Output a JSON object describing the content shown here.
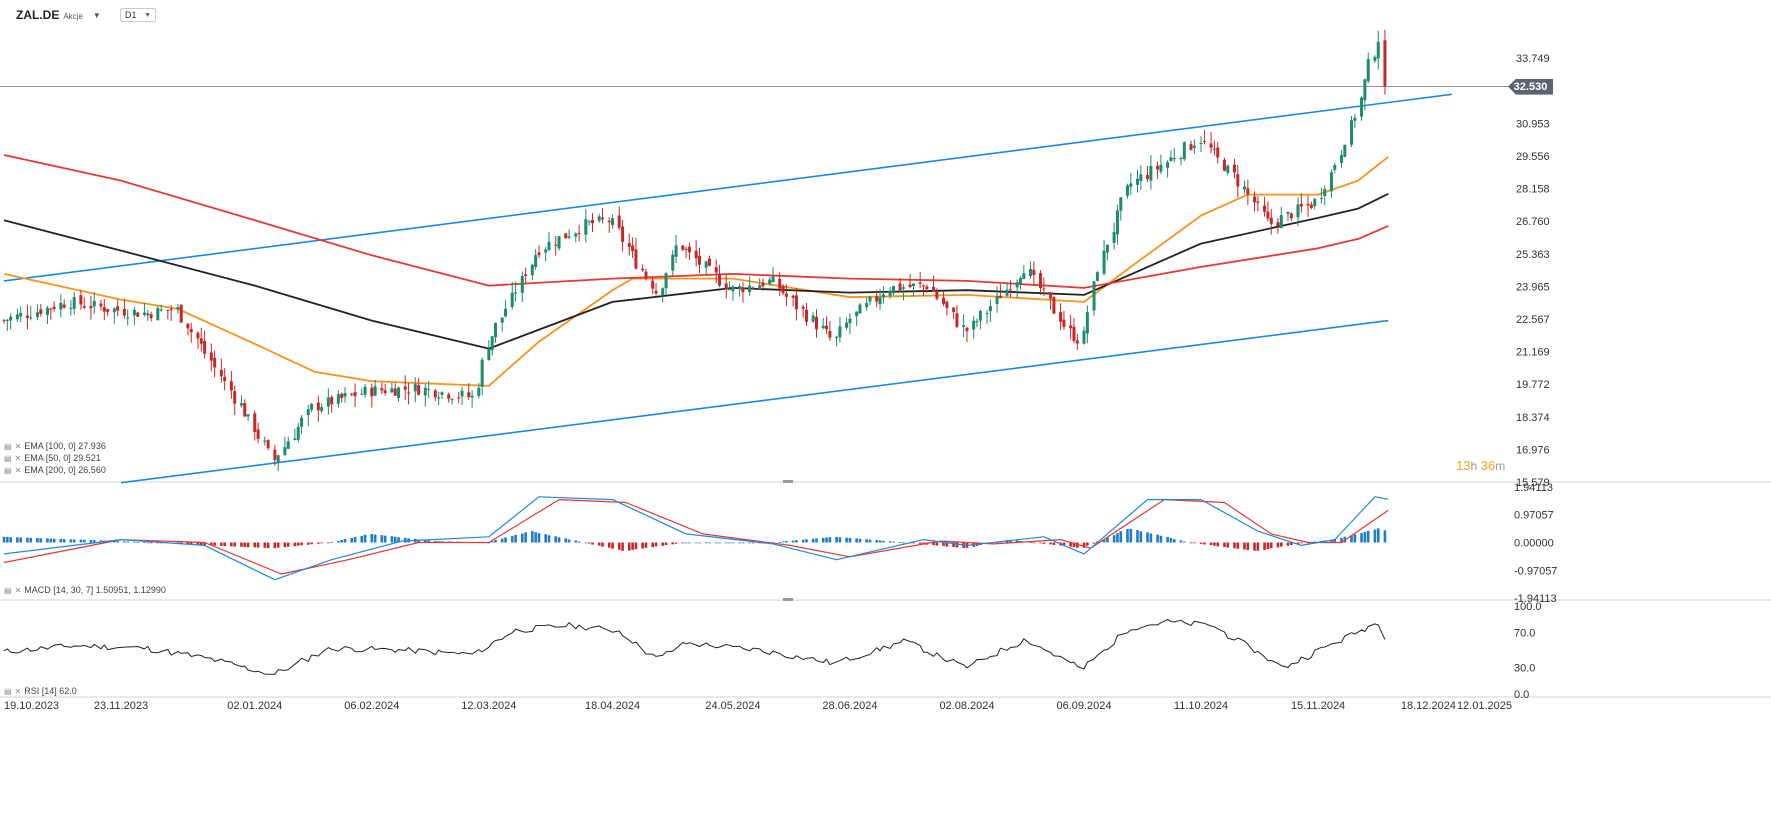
{
  "header": {
    "symbol": "ZAL.DE",
    "asset_type": "Akcje",
    "timeframe": "D1"
  },
  "countdown": {
    "hours": "13",
    "h_unit": "h",
    "minutes": "36",
    "m_unit": "m"
  },
  "colors": {
    "up": "#1e8a6e",
    "down": "#c62828",
    "channel": "#1e88e5",
    "ema50": "#f7941d",
    "ema100": "#222222",
    "ema200": "#e53935",
    "macd_line": "#1e88e5",
    "signal_line": "#e53935",
    "hist_pos": "#1e7cc8",
    "hist_neg": "#c62828",
    "rsi_line": "#222222",
    "badge": "#5a6470"
  },
  "legends": {
    "ema100": "EMA [100,  0] 27.936",
    "ema50": "EMA [50,  0] 29.521",
    "ema200": "EMA [200,  0] 26.560",
    "macd": "MACD [14, 30, 7] 1.50951,  1.12990",
    "rsi": "RSI [14] 62.0"
  },
  "chart_data": {
    "type": "candlestick",
    "symbol": "ZAL.DE",
    "timeframe": "D1",
    "last_price": "32.530",
    "last_price_value": 32.53,
    "price_axis_labels": [
      "33.749",
      "32.530",
      "30.953",
      "29.556",
      "28.158",
      "26.760",
      "25.363",
      "23.965",
      "22.567",
      "21.169",
      "19.772",
      "18.374",
      "16.976",
      "15.579"
    ],
    "price_ylim": [
      15.579,
      35.3
    ],
    "date_labels": [
      "19.10.2023",
      "23.11.2023",
      "02.01.2024",
      "06.02.2024",
      "12.03.2024",
      "18.04.2024",
      "24.05.2024",
      "28.06.2024",
      "02.08.2024",
      "06.09.2024",
      "11.10.2024",
      "15.11.2024",
      "18.12.2024",
      "12.01.2025"
    ],
    "price_path": [
      {
        "date": "2023-10-19",
        "close": 22.5
      },
      {
        "date": "2023-11-08",
        "close": 23.3
      },
      {
        "date": "2023-11-20",
        "close": 23.0
      },
      {
        "date": "2023-12-01",
        "close": 22.8
      },
      {
        "date": "2023-12-10",
        "close": 23.0
      },
      {
        "date": "2023-12-18",
        "close": 21.3
      },
      {
        "date": "2024-01-02",
        "close": 18.0
      },
      {
        "date": "2024-01-08",
        "close": 16.5
      },
      {
        "date": "2024-01-20",
        "close": 18.8
      },
      {
        "date": "2024-02-06",
        "close": 19.5
      },
      {
        "date": "2024-02-20",
        "close": 19.6
      },
      {
        "date": "2024-03-08",
        "close": 19.2
      },
      {
        "date": "2024-03-12",
        "close": 21.5
      },
      {
        "date": "2024-03-27",
        "close": 25.5
      },
      {
        "date": "2024-04-10",
        "close": 26.6
      },
      {
        "date": "2024-04-18",
        "close": 26.8
      },
      {
        "date": "2024-04-24",
        "close": 25.4
      },
      {
        "date": "2024-05-02",
        "close": 23.7
      },
      {
        "date": "2024-05-08",
        "close": 25.8
      },
      {
        "date": "2024-05-24",
        "close": 23.8
      },
      {
        "date": "2024-06-05",
        "close": 24.2
      },
      {
        "date": "2024-06-15",
        "close": 22.8
      },
      {
        "date": "2024-06-24",
        "close": 21.6
      },
      {
        "date": "2024-06-28",
        "close": 22.5
      },
      {
        "date": "2024-07-10",
        "close": 23.9
      },
      {
        "date": "2024-07-22",
        "close": 24.0
      },
      {
        "date": "2024-08-02",
        "close": 22.0
      },
      {
        "date": "2024-08-09",
        "close": 23.0
      },
      {
        "date": "2024-08-20",
        "close": 24.8
      },
      {
        "date": "2024-09-02",
        "close": 22.0
      },
      {
        "date": "2024-09-06",
        "close": 21.6
      },
      {
        "date": "2024-09-10",
        "close": 24.5
      },
      {
        "date": "2024-09-20",
        "close": 28.3
      },
      {
        "date": "2024-10-01",
        "close": 29.3
      },
      {
        "date": "2024-10-11",
        "close": 30.3
      },
      {
        "date": "2024-10-22",
        "close": 28.6
      },
      {
        "date": "2024-11-01",
        "close": 26.6
      },
      {
        "date": "2024-11-09",
        "close": 27.2
      },
      {
        "date": "2024-11-15",
        "close": 27.6
      },
      {
        "date": "2024-11-20",
        "close": 29.0
      },
      {
        "date": "2024-11-27",
        "close": 31.5
      },
      {
        "date": "2024-12-01",
        "close": 33.5
      },
      {
        "date": "2024-12-04",
        "close": 34.7
      },
      {
        "date": "2024-12-06",
        "close": 32.53
      }
    ],
    "ema_series": [
      {
        "name": "EMA 50",
        "last": 29.521,
        "points": [
          {
            "date": "2023-10-19",
            "value": 24.5
          },
          {
            "date": "2023-11-23",
            "value": 23.4
          },
          {
            "date": "2023-12-10",
            "value": 23.0
          },
          {
            "date": "2024-01-02",
            "value": 21.5
          },
          {
            "date": "2024-01-20",
            "value": 20.3
          },
          {
            "date": "2024-02-06",
            "value": 19.9
          },
          {
            "date": "2024-03-12",
            "value": 19.7
          },
          {
            "date": "2024-03-27",
            "value": 21.6
          },
          {
            "date": "2024-04-18",
            "value": 23.8
          },
          {
            "date": "2024-04-24",
            "value": 24.3
          },
          {
            "date": "2024-05-24",
            "value": 24.3
          },
          {
            "date": "2024-06-28",
            "value": 23.5
          },
          {
            "date": "2024-08-02",
            "value": 23.6
          },
          {
            "date": "2024-09-06",
            "value": 23.3
          },
          {
            "date": "2024-09-20",
            "value": 24.8
          },
          {
            "date": "2024-10-11",
            "value": 27.0
          },
          {
            "date": "2024-10-25",
            "value": 27.9
          },
          {
            "date": "2024-11-15",
            "value": 27.9
          },
          {
            "date": "2024-11-27",
            "value": 28.5
          },
          {
            "date": "2024-12-06",
            "value": 29.521
          }
        ]
      },
      {
        "name": "EMA 100",
        "last": 27.936,
        "points": [
          {
            "date": "2023-10-19",
            "value": 26.8
          },
          {
            "date": "2023-11-23",
            "value": 25.5
          },
          {
            "date": "2024-01-02",
            "value": 24.0
          },
          {
            "date": "2024-02-06",
            "value": 22.5
          },
          {
            "date": "2024-03-12",
            "value": 21.3
          },
          {
            "date": "2024-04-18",
            "value": 23.3
          },
          {
            "date": "2024-05-24",
            "value": 23.9
          },
          {
            "date": "2024-06-28",
            "value": 23.7
          },
          {
            "date": "2024-08-02",
            "value": 23.8
          },
          {
            "date": "2024-09-06",
            "value": 23.6
          },
          {
            "date": "2024-10-11",
            "value": 25.8
          },
          {
            "date": "2024-11-15",
            "value": 26.9
          },
          {
            "date": "2024-11-27",
            "value": 27.3
          },
          {
            "date": "2024-12-06",
            "value": 27.936
          }
        ]
      },
      {
        "name": "EMA 200",
        "last": 26.56,
        "points": [
          {
            "date": "2023-10-19",
            "value": 29.6
          },
          {
            "date": "2023-11-23",
            "value": 28.5
          },
          {
            "date": "2024-01-02",
            "value": 26.8
          },
          {
            "date": "2024-02-06",
            "value": 25.3
          },
          {
            "date": "2024-03-12",
            "value": 24.0
          },
          {
            "date": "2024-04-18",
            "value": 24.3
          },
          {
            "date": "2024-05-24",
            "value": 24.5
          },
          {
            "date": "2024-06-28",
            "value": 24.3
          },
          {
            "date": "2024-08-02",
            "value": 24.2
          },
          {
            "date": "2024-09-06",
            "value": 23.9
          },
          {
            "date": "2024-10-11",
            "value": 24.8
          },
          {
            "date": "2024-11-15",
            "value": 25.6
          },
          {
            "date": "2024-11-27",
            "value": 26.0
          },
          {
            "date": "2024-12-06",
            "value": 26.56
          }
        ]
      }
    ],
    "channel_lines": [
      {
        "name": "upper",
        "from": {
          "date": "2023-10-19",
          "value": 24.2
        },
        "to": {
          "date": "2024-12-25",
          "value": 32.2
        }
      },
      {
        "name": "lower",
        "from": {
          "date": "2023-11-23",
          "value": 15.55
        },
        "to": {
          "date": "2024-12-06",
          "value": 22.5
        }
      }
    ],
    "macd": {
      "params": "14, 30, 7",
      "macd_value": 1.50951,
      "signal_value": 1.1299,
      "axis_labels": [
        "1.94113",
        "0.97057",
        "0.00000",
        "-0.97057",
        "-1.94113"
      ],
      "ylim": [
        -1.94113,
        1.94113
      ],
      "macd_path": [
        {
          "date": "2023-10-19",
          "value": -0.4
        },
        {
          "date": "2023-11-23",
          "value": 0.1
        },
        {
          "date": "2023-12-18",
          "value": -0.1
        },
        {
          "date": "2024-01-08",
          "value": -1.3
        },
        {
          "date": "2024-01-25",
          "value": -0.6
        },
        {
          "date": "2024-02-15",
          "value": 0.05
        },
        {
          "date": "2024-03-12",
          "value": 0.2
        },
        {
          "date": "2024-03-27",
          "value": 1.6
        },
        {
          "date": "2024-04-18",
          "value": 1.5
        },
        {
          "date": "2024-05-10",
          "value": 0.3
        },
        {
          "date": "2024-06-05",
          "value": -0.05
        },
        {
          "date": "2024-06-24",
          "value": -0.6
        },
        {
          "date": "2024-07-20",
          "value": 0.1
        },
        {
          "date": "2024-08-02",
          "value": -0.1
        },
        {
          "date": "2024-08-25",
          "value": 0.2
        },
        {
          "date": "2024-09-06",
          "value": -0.4
        },
        {
          "date": "2024-09-25",
          "value": 1.5
        },
        {
          "date": "2024-10-11",
          "value": 1.5
        },
        {
          "date": "2024-10-28",
          "value": 0.4
        },
        {
          "date": "2024-11-10",
          "value": -0.1
        },
        {
          "date": "2024-11-20",
          "value": 0.1
        },
        {
          "date": "2024-12-02",
          "value": 1.6
        },
        {
          "date": "2024-12-06",
          "value": 1.50951
        }
      ],
      "signal_path": [
        {
          "date": "2023-10-19",
          "value": -0.7
        },
        {
          "date": "2023-11-23",
          "value": 0.1
        },
        {
          "date": "2023-12-18",
          "value": 0.0
        },
        {
          "date": "2024-01-10",
          "value": -1.1
        },
        {
          "date": "2024-01-30",
          "value": -0.6
        },
        {
          "date": "2024-02-20",
          "value": 0.0
        },
        {
          "date": "2024-03-12",
          "value": 0.0
        },
        {
          "date": "2024-04-02",
          "value": 1.5
        },
        {
          "date": "2024-04-22",
          "value": 1.4
        },
        {
          "date": "2024-05-15",
          "value": 0.3
        },
        {
          "date": "2024-06-10",
          "value": -0.1
        },
        {
          "date": "2024-06-28",
          "value": -0.5
        },
        {
          "date": "2024-07-25",
          "value": 0.05
        },
        {
          "date": "2024-08-10",
          "value": -0.05
        },
        {
          "date": "2024-08-30",
          "value": 0.1
        },
        {
          "date": "2024-09-08",
          "value": -0.2
        },
        {
          "date": "2024-09-30",
          "value": 1.5
        },
        {
          "date": "2024-10-18",
          "value": 1.4
        },
        {
          "date": "2024-11-01",
          "value": 0.3
        },
        {
          "date": "2024-11-12",
          "value": 0.0
        },
        {
          "date": "2024-11-22",
          "value": 0.0
        },
        {
          "date": "2024-12-06",
          "value": 1.1299
        }
      ],
      "histogram_path": [
        {
          "date": "2023-10-19",
          "value": 0.2
        },
        {
          "date": "2023-11-23",
          "value": 0.05
        },
        {
          "date": "2023-12-20",
          "value": -0.1
        },
        {
          "date": "2024-01-08",
          "value": -0.2
        },
        {
          "date": "2024-01-25",
          "value": 0.0
        },
        {
          "date": "2024-02-06",
          "value": 0.3
        },
        {
          "date": "2024-02-25",
          "value": 0.05
        },
        {
          "date": "2024-03-12",
          "value": 0.0
        },
        {
          "date": "2024-03-25",
          "value": 0.4
        },
        {
          "date": "2024-04-10",
          "value": 0.0
        },
        {
          "date": "2024-04-22",
          "value": -0.3
        },
        {
          "date": "2024-05-10",
          "value": 0.0
        },
        {
          "date": "2024-06-05",
          "value": 0.0
        },
        {
          "date": "2024-06-24",
          "value": 0.2
        },
        {
          "date": "2024-07-15",
          "value": 0.0
        },
        {
          "date": "2024-08-02",
          "value": -0.2
        },
        {
          "date": "2024-08-15",
          "value": 0.1
        },
        {
          "date": "2024-09-06",
          "value": -0.2
        },
        {
          "date": "2024-09-20",
          "value": 0.5
        },
        {
          "date": "2024-10-08",
          "value": 0.0
        },
        {
          "date": "2024-10-28",
          "value": -0.3
        },
        {
          "date": "2024-11-12",
          "value": 0.0
        },
        {
          "date": "2024-11-20",
          "value": 0.1
        },
        {
          "date": "2024-12-04",
          "value": 0.5
        },
        {
          "date": "2024-12-06",
          "value": 0.38
        }
      ]
    },
    "rsi": {
      "period": 14,
      "last": 62.0,
      "axis_labels": [
        "100.0",
        "70.0",
        "30.0",
        "0.0"
      ],
      "ylim": [
        0,
        100
      ],
      "path": [
        {
          "date": "2023-10-19",
          "value": 48
        },
        {
          "date": "2023-11-10",
          "value": 55
        },
        {
          "date": "2023-12-01",
          "value": 52
        },
        {
          "date": "2023-12-20",
          "value": 40
        },
        {
          "date": "2024-01-08",
          "value": 22
        },
        {
          "date": "2024-01-25",
          "value": 52
        },
        {
          "date": "2024-02-15",
          "value": 50
        },
        {
          "date": "2024-03-08",
          "value": 45
        },
        {
          "date": "2024-03-20",
          "value": 72
        },
        {
          "date": "2024-04-05",
          "value": 78
        },
        {
          "date": "2024-04-20",
          "value": 72
        },
        {
          "date": "2024-05-02",
          "value": 40
        },
        {
          "date": "2024-05-10",
          "value": 58
        },
        {
          "date": "2024-06-01",
          "value": 50
        },
        {
          "date": "2024-06-24",
          "value": 35
        },
        {
          "date": "2024-07-15",
          "value": 60
        },
        {
          "date": "2024-08-02",
          "value": 30
        },
        {
          "date": "2024-08-20",
          "value": 62
        },
        {
          "date": "2024-09-06",
          "value": 28
        },
        {
          "date": "2024-09-20",
          "value": 75
        },
        {
          "date": "2024-10-01",
          "value": 82
        },
        {
          "date": "2024-10-15",
          "value": 78
        },
        {
          "date": "2024-10-28",
          "value": 48
        },
        {
          "date": "2024-11-05",
          "value": 30
        },
        {
          "date": "2024-11-15",
          "value": 48
        },
        {
          "date": "2024-11-28",
          "value": 72
        },
        {
          "date": "2024-12-04",
          "value": 82
        },
        {
          "date": "2024-12-06",
          "value": 62
        }
      ]
    }
  }
}
